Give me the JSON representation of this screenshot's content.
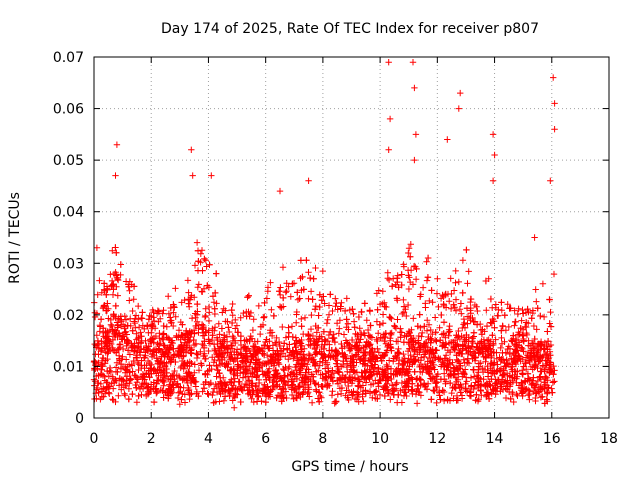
{
  "chart_data": {
    "type": "scatter",
    "title": "Day 174 of 2025, Rate Of TEC Index for receiver p807",
    "xlabel": "GPS time / hours",
    "ylabel": "ROTI / TECUs",
    "xlim": [
      0,
      18
    ],
    "ylim": [
      0,
      0.07
    ],
    "xticks": [
      0,
      2,
      4,
      6,
      8,
      10,
      12,
      14,
      16,
      18
    ],
    "yticks": [
      0,
      0.01,
      0.02,
      0.03,
      0.04,
      0.05,
      0.06,
      0.07
    ],
    "xtick_labels": [
      "0",
      "2",
      "4",
      "6",
      "8",
      "10",
      "12",
      "14",
      "16",
      "18"
    ],
    "ytick_labels": [
      "0",
      "0.01",
      "0.02",
      "0.03",
      "0.04",
      "0.05",
      "0.06",
      "0.07"
    ],
    "grid": true,
    "marker": "+",
    "color": "#ff0000",
    "data_x_range": [
      0,
      16.1
    ],
    "envelope": {
      "x": [
        0,
        0.5,
        0.8,
        1.5,
        2.5,
        3.3,
        3.6,
        4.0,
        4.5,
        5.5,
        6.5,
        7.5,
        8.5,
        9.5,
        10.2,
        11.0,
        11.5,
        12.3,
        12.8,
        13.5,
        14.0,
        14.5,
        15.0,
        15.6,
        16.1
      ],
      "typical_y": [
        0.012,
        0.014,
        0.016,
        0.012,
        0.011,
        0.013,
        0.016,
        0.014,
        0.011,
        0.011,
        0.011,
        0.012,
        0.011,
        0.011,
        0.012,
        0.013,
        0.012,
        0.012,
        0.013,
        0.011,
        0.011,
        0.011,
        0.012,
        0.011,
        0.01
      ],
      "upper_y": [
        0.028,
        0.032,
        0.038,
        0.025,
        0.024,
        0.03,
        0.042,
        0.035,
        0.023,
        0.024,
        0.03,
        0.035,
        0.028,
        0.025,
        0.032,
        0.04,
        0.033,
        0.032,
        0.036,
        0.026,
        0.028,
        0.025,
        0.025,
        0.025,
        0.038
      ]
    },
    "notable_points": [
      {
        "x": 0.8,
        "y": 0.053
      },
      {
        "x": 0.75,
        "y": 0.047
      },
      {
        "x": 3.4,
        "y": 0.052
      },
      {
        "x": 3.45,
        "y": 0.047
      },
      {
        "x": 4.1,
        "y": 0.047
      },
      {
        "x": 10.3,
        "y": 0.069
      },
      {
        "x": 10.35,
        "y": 0.058
      },
      {
        "x": 10.3,
        "y": 0.052
      },
      {
        "x": 11.15,
        "y": 0.069
      },
      {
        "x": 11.2,
        "y": 0.064
      },
      {
        "x": 11.25,
        "y": 0.055
      },
      {
        "x": 11.2,
        "y": 0.05
      },
      {
        "x": 12.8,
        "y": 0.063
      },
      {
        "x": 12.75,
        "y": 0.06
      },
      {
        "x": 12.35,
        "y": 0.054
      },
      {
        "x": 13.95,
        "y": 0.055
      },
      {
        "x": 14.0,
        "y": 0.051
      },
      {
        "x": 13.95,
        "y": 0.046
      },
      {
        "x": 16.05,
        "y": 0.066
      },
      {
        "x": 16.1,
        "y": 0.061
      },
      {
        "x": 16.1,
        "y": 0.056
      },
      {
        "x": 15.95,
        "y": 0.046
      },
      {
        "x": 0.1,
        "y": 0.033
      },
      {
        "x": 4.9,
        "y": 0.002
      },
      {
        "x": 7.5,
        "y": 0.046
      },
      {
        "x": 6.5,
        "y": 0.044
      },
      {
        "x": 15.4,
        "y": 0.035
      }
    ]
  }
}
